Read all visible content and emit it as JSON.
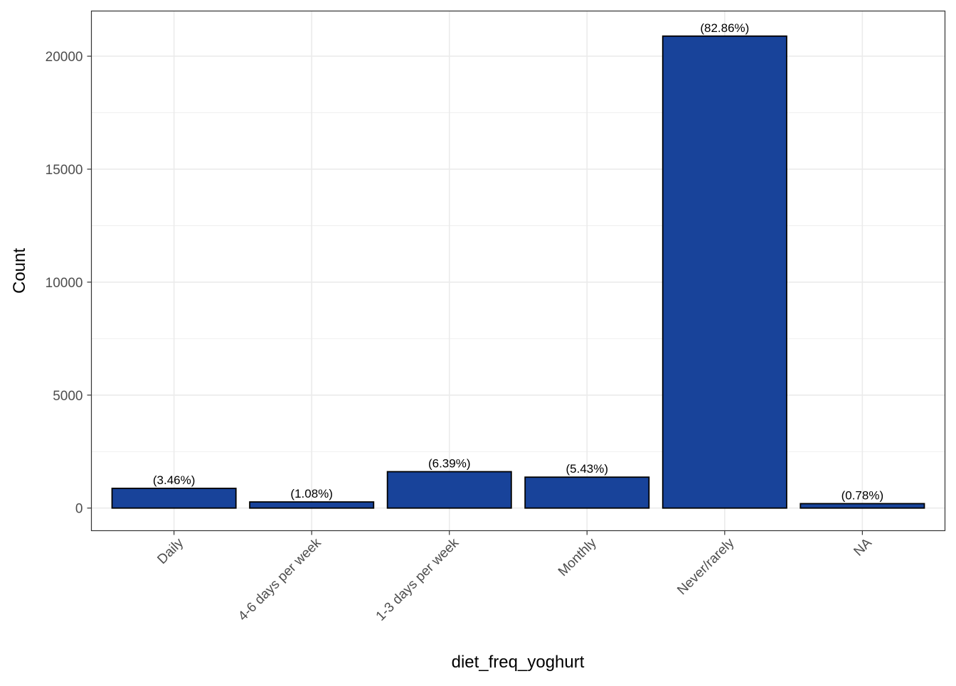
{
  "chart_data": {
    "type": "bar",
    "title": "",
    "xlabel": "diet_freq_yoghurt",
    "ylabel": "Count",
    "categories": [
      "Daily",
      "4-6 days per week",
      "1-3 days per week",
      "Monthly",
      "Never/rarely",
      "NA"
    ],
    "values": [
      873,
      272,
      1611,
      1369,
      20890,
      197
    ],
    "bar_labels": [
      "(3.46%)",
      "(1.08%)",
      "(6.39%)",
      "(5.43%)",
      "(82.86%)",
      "(0.78%)"
    ],
    "ylim": [
      -1000,
      22000
    ],
    "yticks": [
      0,
      5000,
      10000,
      15000,
      20000
    ],
    "ytick_labels": [
      "0",
      "5000",
      "10000",
      "15000",
      "20000"
    ],
    "grid": true,
    "legend": "none",
    "colors": {
      "bar_fill": "#18439A",
      "bar_stroke": "#000000",
      "grid": "#EBEBEB",
      "panel_border": "#333333"
    }
  }
}
